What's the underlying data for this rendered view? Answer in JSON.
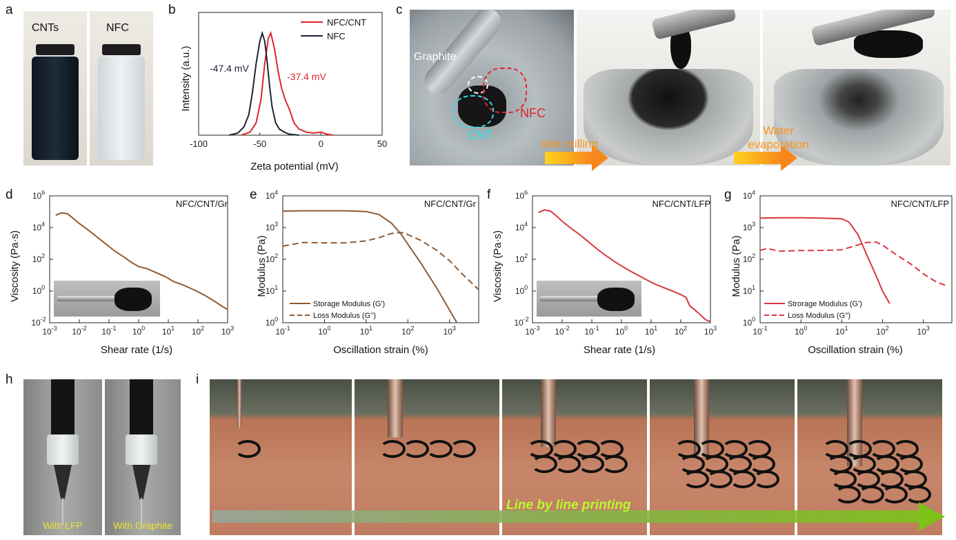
{
  "panels": {
    "a": {
      "letter": "a",
      "labels": [
        "CNTs",
        "NFC"
      ]
    },
    "b": {
      "letter": "b"
    },
    "c": {
      "letter": "c",
      "annotations": {
        "graphite": "Graphite",
        "nfc": "NFC",
        "cnt": "CNT",
        "wet_milling": "Wet milling",
        "water_evap_1": "Water",
        "water_evap_2": "evaporation"
      }
    },
    "d": {
      "letter": "d"
    },
    "e": {
      "letter": "e"
    },
    "f": {
      "letter": "f"
    },
    "g": {
      "letter": "g"
    },
    "h": {
      "letter": "h",
      "labels": [
        "With LFP",
        "With Graphite"
      ]
    },
    "i": {
      "letter": "i",
      "arrow_text": "Line by line printing"
    }
  },
  "colors": {
    "red": "#e0242b",
    "navy": "#1c2433",
    "brown": "#8f5a32",
    "redline": "#d9363e",
    "orange": "#f7941d",
    "yellow_text": "#f2e12c",
    "green_text": "#b5ff2a"
  },
  "chart_data": [
    {
      "id": "b",
      "type": "line",
      "xlabel": "Zeta potential (mV)",
      "ylabel": "Intensity (a.u.)",
      "xlim": [
        -100,
        50
      ],
      "xticks": [
        "-100",
        "-50",
        "0",
        "50"
      ],
      "series": [
        {
          "name": "NFC/CNT",
          "color": "#e0242b",
          "x": [
            -65,
            -58,
            -53,
            -49,
            -46,
            -43,
            -41,
            -38,
            -35,
            -32,
            -29,
            -26,
            -22,
            -18,
            -12,
            -6,
            0,
            5,
            10
          ],
          "y": [
            0,
            0.03,
            0.12,
            0.35,
            0.7,
            0.95,
            1.0,
            0.85,
            0.62,
            0.45,
            0.34,
            0.26,
            0.12,
            0.06,
            0.03,
            0.02,
            0.03,
            0.01,
            0
          ]
        },
        {
          "name": "NFC",
          "color": "#1c2433",
          "x": [
            -75,
            -68,
            -63,
            -59,
            -56,
            -53,
            -50,
            -48,
            -46,
            -44,
            -42,
            -40,
            -37,
            -34,
            -30,
            -26,
            -22,
            -18
          ],
          "y": [
            0,
            0.02,
            0.08,
            0.2,
            0.42,
            0.7,
            0.92,
            1.0,
            0.92,
            0.72,
            0.48,
            0.28,
            0.12,
            0.06,
            0.03,
            0.01,
            0.005,
            0
          ]
        }
      ],
      "annotations": [
        "-47.4 mV",
        "-37.4 mV"
      ]
    },
    {
      "id": "d",
      "type": "line",
      "title": "NFC/CNT/Gr",
      "xlabel": "Shear rate (1/s)",
      "ylabel": "Viscosity (Pa·s)",
      "xscale": "log",
      "yscale": "log",
      "xlim": [
        0.001,
        1000
      ],
      "ylim": [
        0.01,
        1000000
      ],
      "series": [
        {
          "name": "",
          "color": "#8f5a32",
          "x": [
            0.0016,
            0.0025,
            0.004,
            0.006,
            0.01,
            0.02,
            0.04,
            0.08,
            0.15,
            0.3,
            0.6,
            1,
            2,
            4,
            8,
            15,
            30,
            60,
            100,
            200,
            400,
            700,
            1000
          ],
          "y": [
            60000,
            85000,
            75000,
            40000,
            18000,
            7000,
            2500,
            900,
            350,
            150,
            60,
            35,
            25,
            14,
            8,
            4,
            2.5,
            1.4,
            0.9,
            0.45,
            0.2,
            0.1,
            0.07
          ]
        }
      ]
    },
    {
      "id": "e",
      "type": "line",
      "title": "NFC/CNT/Gr",
      "xlabel": "Oscillation strain (%)",
      "ylabel": "Modulus (Pa)",
      "xscale": "log",
      "yscale": "log",
      "xlim": [
        0.1,
        5000
      ],
      "ylim": [
        1,
        10000
      ],
      "series": [
        {
          "name": "Storage Modulus (G')",
          "style": "solid",
          "color": "#8f5a32",
          "x": [
            0.1,
            0.3,
            1,
            3,
            10,
            20,
            40,
            70,
            100,
            200,
            500,
            1000,
            1500
          ],
          "y": [
            3300,
            3400,
            3400,
            3400,
            3200,
            2600,
            1400,
            600,
            300,
            80,
            12,
            2.5,
            1
          ]
        },
        {
          "name": "Loss Modulus (G'')",
          "style": "dashed",
          "color": "#8f5a32",
          "x": [
            0.1,
            0.3,
            1,
            3,
            10,
            20,
            40,
            70,
            100,
            200,
            500,
            1000,
            2000,
            5000
          ],
          "y": [
            260,
            340,
            330,
            330,
            380,
            480,
            650,
            700,
            600,
            400,
            190,
            90,
            35,
            11
          ]
        }
      ]
    },
    {
      "id": "f",
      "type": "line",
      "title": "NFC/CNT/LFP",
      "xlabel": "Shear rate (1/s)",
      "ylabel": "Viscosity (Pa·s)",
      "xscale": "log",
      "yscale": "log",
      "xlim": [
        0.001,
        1000
      ],
      "ylim": [
        0.01,
        1000000
      ],
      "series": [
        {
          "name": "",
          "color": "#d9363e",
          "x": [
            0.0016,
            0.0025,
            0.004,
            0.006,
            0.01,
            0.02,
            0.04,
            0.08,
            0.15,
            0.3,
            0.6,
            1,
            2,
            4,
            8,
            15,
            30,
            60,
            100,
            150,
            200,
            400,
            700,
            1000
          ],
          "y": [
            90000,
            130000,
            110000,
            60000,
            25000,
            9000,
            3500,
            1200,
            450,
            170,
            70,
            38,
            18,
            9,
            4.5,
            2.5,
            1.5,
            0.9,
            0.6,
            0.4,
            0.12,
            0.04,
            0.015,
            0.012
          ]
        }
      ]
    },
    {
      "id": "g",
      "type": "line",
      "title": "NFC/CNT/LFP",
      "xlabel": "Oscillation strain (%)",
      "ylabel": "Modulus (Pa)",
      "xscale": "log",
      "yscale": "log",
      "xlim": [
        0.1,
        5000
      ],
      "ylim": [
        1,
        10000
      ],
      "series": [
        {
          "name": "Strorage Modulus (G')",
          "style": "solid",
          "color": "#d9363e",
          "x": [
            0.1,
            0.3,
            1,
            3,
            10,
            15,
            25,
            40,
            70,
            100,
            150
          ],
          "y": [
            2000,
            2050,
            2050,
            2000,
            1900,
            1500,
            600,
            150,
            30,
            10,
            4
          ]
        },
        {
          "name": "Loss Modulus (G'')",
          "style": "dashed",
          "color": "#d9363e",
          "x": [
            0.1,
            0.15,
            0.3,
            1,
            3,
            10,
            20,
            40,
            70,
            100,
            200,
            500,
            1000,
            2000,
            4000
          ],
          "y": [
            190,
            220,
            180,
            190,
            190,
            200,
            260,
            340,
            350,
            280,
            150,
            70,
            35,
            20,
            14
          ]
        }
      ]
    }
  ]
}
